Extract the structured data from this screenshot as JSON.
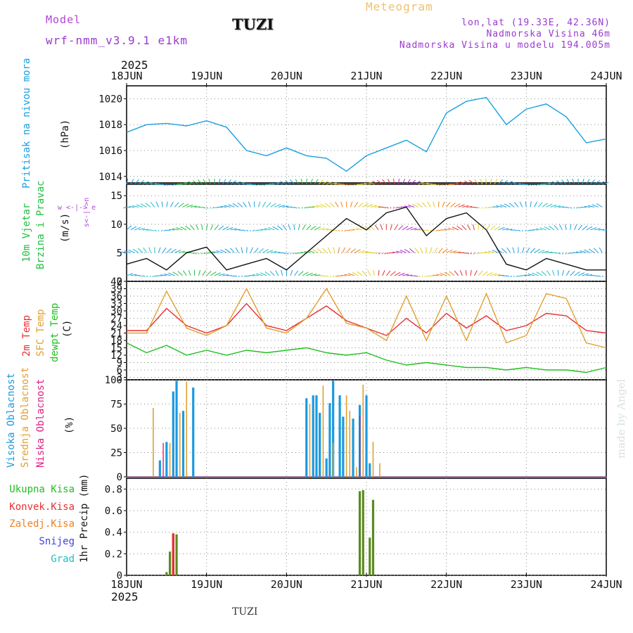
{
  "header": {
    "model_label": "Model",
    "model_name": "wrf-nmm_v3.9.1 e1km",
    "station": "TUZI",
    "title": "Meteogram",
    "coords": "lon,lat (19.33E, 42.36N)",
    "elevation": "Nadmorska Visina 46m",
    "model_elevation": "Nadmorska Visina u modelu 194.005m",
    "year": "2025",
    "footer_station": "TUZI",
    "credit": "made by Angel"
  },
  "colors": {
    "model_label": "#b044d8",
    "title": "#f0c070",
    "coords": "#9a3ad0",
    "pressure": "#1aa0e0",
    "wind_label": "#20c040",
    "temp_2m": "#e83030",
    "temp_sfc": "#e0a030",
    "dewpt": "#20c020",
    "cloud_high": "#1a9ae0",
    "cloud_mid": "#e0a030",
    "cloud_low": "#e02080",
    "precip_total": "#20c020",
    "precip_conv": "#e83030",
    "precip_frozen": "#f08020",
    "snow": "#4040e0",
    "grad": "#20c0c0",
    "grid": "#888888"
  },
  "x_axis": {
    "ticks": [
      "18JUN",
      "19JUN",
      "20JUN",
      "21JUN",
      "22JUN",
      "23JUN",
      "24JUN"
    ],
    "year": "2025"
  },
  "panels": {
    "pressure": {
      "label": "Pritisak na nivou mora",
      "unit": "(hPa)",
      "yticks": [
        "1014",
        "1016",
        "1018",
        "1020"
      ]
    },
    "wind": {
      "label1": "10m Vjetar",
      "label2": "Brzina i Pravac",
      "unit": "(m/s)",
      "yticks": [
        "0",
        "5",
        "10",
        "15"
      ],
      "compass": "w <-|-> e",
      "compass_v": "s<-|->n"
    },
    "temp": {
      "label1": "2m Temp",
      "label2": "SFC Temp",
      "label3": "dewpt Temp",
      "unit": "(C)",
      "yticks": [
        "3",
        "6",
        "9",
        "12",
        "15",
        "18",
        "21",
        "24",
        "27",
        "30",
        "33",
        "36",
        "39",
        "42"
      ]
    },
    "cloud": {
      "label1": "Visoka Oblacnost",
      "label2": "Srednja Oblacnost",
      "label3": "Niska Oblacnost",
      "unit": "(%)",
      "yticks": [
        "0",
        "25",
        "50",
        "75",
        "100"
      ]
    },
    "precip": {
      "labels": [
        "Ukupna Kisa",
        "Konvek.Kisa",
        "Zaledj.Kisa",
        "Snijeg",
        "Grad"
      ],
      "unit": "1hr Precip (mm)",
      "yticks": [
        "0",
        "0.2",
        "0.4",
        "0.6",
        "0.8"
      ]
    }
  },
  "chart_data": [
    {
      "type": "line",
      "ylabel": "(hPa)",
      "ylim": [
        1013.5,
        1021
      ],
      "x": [
        0,
        6,
        12,
        18,
        24,
        30,
        36,
        42,
        48,
        54,
        60,
        66,
        72,
        78,
        84,
        90,
        96,
        102,
        108,
        114,
        120,
        126,
        132,
        138,
        144
      ],
      "series": [
        {
          "values": [
            1017.4,
            1018.0,
            1018.1,
            1017.9,
            1018.3,
            1017.8,
            1016.0,
            1015.6,
            1016.2,
            1015.6,
            1015.4,
            1014.4,
            1015.6,
            1016.2,
            1016.8,
            1015.9,
            1018.9,
            1019.8,
            1020.1,
            1018.0,
            1019.2,
            1019.6,
            1018.6,
            1016.6,
            1016.9
          ]
        }
      ],
      "grid": true
    },
    {
      "type": "line",
      "ylabel": "(m/s)",
      "ylim": [
        0,
        17
      ],
      "x": [
        0,
        6,
        12,
        18,
        24,
        30,
        36,
        42,
        48,
        54,
        60,
        66,
        72,
        78,
        84,
        90,
        96,
        102,
        108,
        114,
        120,
        126,
        132,
        138,
        144
      ],
      "series": [
        {
          "values": [
            3,
            4,
            2,
            5,
            6,
            2,
            3,
            4,
            2,
            5,
            8,
            11,
            9,
            12,
            13,
            8,
            11,
            12,
            9,
            3,
            2,
            4,
            3,
            2,
            2
          ]
        }
      ],
      "grid": true
    },
    {
      "type": "line",
      "ylabel": "(C)",
      "ylim": [
        2,
        42
      ],
      "x": [
        0,
        6,
        12,
        18,
        24,
        30,
        36,
        42,
        48,
        54,
        60,
        66,
        72,
        78,
        84,
        90,
        96,
        102,
        108,
        114,
        120,
        126,
        132,
        138,
        144
      ],
      "series": [
        {
          "name": "2m Temp",
          "values": [
            22,
            22,
            31,
            24,
            21,
            24,
            33,
            24,
            22,
            27,
            32,
            26,
            23,
            20,
            27,
            21,
            29,
            23,
            28,
            22,
            24,
            29,
            28,
            22,
            21
          ]
        },
        {
          "name": "SFC Temp",
          "values": [
            21,
            21,
            38,
            23,
            20,
            24,
            39,
            23,
            21,
            27,
            39,
            25,
            23,
            18,
            36,
            18,
            36,
            18,
            37,
            17,
            20,
            37,
            35,
            17,
            15
          ]
        },
        {
          "name": "dewpt Temp",
          "values": [
            17,
            13,
            16,
            12,
            14,
            12,
            14,
            13,
            14,
            15,
            13,
            12,
            13,
            10,
            8,
            9,
            8,
            7,
            7,
            6,
            7,
            6,
            6,
            5,
            7
          ]
        }
      ],
      "grid": true
    },
    {
      "type": "bar",
      "ylabel": "(%)",
      "ylim": [
        0,
        100
      ],
      "series": [
        {
          "name": "Visoka Oblacnost",
          "bars": [
            [
              10,
              17
            ],
            [
              12,
              36
            ],
            [
              14,
              88
            ],
            [
              15,
              99
            ],
            [
              17,
              68
            ],
            [
              20,
              92
            ],
            [
              54,
              81
            ],
            [
              56,
              84
            ],
            [
              57,
              84
            ],
            [
              58,
              66
            ],
            [
              60,
              19
            ],
            [
              61,
              76
            ],
            [
              62,
              99
            ],
            [
              64,
              84
            ],
            [
              65,
              62
            ],
            [
              68,
              60
            ],
            [
              70,
              74
            ],
            [
              72,
              84
            ],
            [
              73,
              14
            ]
          ]
        },
        {
          "name": "Srednja Oblacnost",
          "bars": [
            [
              8,
              71
            ],
            [
              13,
              35
            ],
            [
              16,
              66
            ],
            [
              18,
              98
            ],
            [
              55,
              75
            ],
            [
              59,
              94
            ],
            [
              62,
              35
            ],
            [
              66,
              84
            ],
            [
              67,
              68
            ],
            [
              69,
              10
            ],
            [
              71,
              95
            ],
            [
              74,
              36
            ],
            [
              76,
              14
            ]
          ]
        },
        {
          "name": "Niska Oblacnost",
          "bars": [
            [
              11,
              35
            ],
            [
              70,
              63
            ]
          ]
        }
      ],
      "grid": true
    },
    {
      "type": "bar",
      "ylabel": "1hr Precip (mm)",
      "ylim": [
        0,
        0.9
      ],
      "series": [
        {
          "name": "Ukupna Kisa",
          "bars": [
            [
              12,
              0.03
            ],
            [
              13,
              0.22
            ],
            [
              14,
              0.38
            ],
            [
              15,
              0.38
            ],
            [
              70,
              0.78
            ],
            [
              71,
              0.79
            ],
            [
              73,
              0.35
            ],
            [
              74,
              0.7
            ]
          ]
        },
        {
          "name": "Konvek.Kisa",
          "bars": [
            [
              14,
              0.39
            ]
          ]
        }
      ],
      "grid": true
    }
  ]
}
